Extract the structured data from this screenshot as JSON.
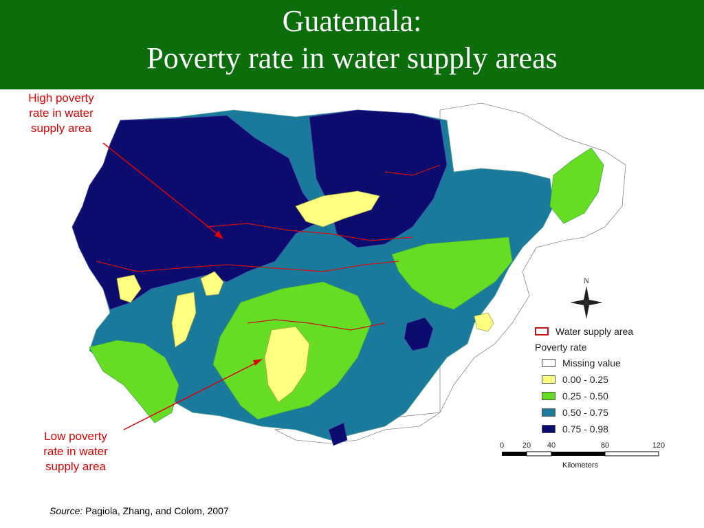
{
  "header": {
    "title_line1": "Guatemala:",
    "title_line2": "Poverty rate in water supply areas",
    "bg_color": "#0b6e0b"
  },
  "callouts": {
    "high": [
      "High poverty",
      "rate in water",
      "supply area"
    ],
    "low": [
      "Low poverty",
      "rate in water",
      "supply area"
    ],
    "color": "#e00000"
  },
  "legend": {
    "water_supply_label": "Water supply area",
    "poverty_title": "Poverty rate",
    "classes": [
      {
        "label": "Missing value",
        "color": "#ffffff"
      },
      {
        "label": "0.00 - 0.25",
        "color": "#ffff80"
      },
      {
        "label": "0.25 - 0.50",
        "color": "#66dd22"
      },
      {
        "label": "0.50 - 0.75",
        "color": "#1a7a9c"
      },
      {
        "label": "0.75 - 0.98",
        "color": "#0c0c6e"
      }
    ]
  },
  "north_arrow": {
    "label": "N"
  },
  "scale": {
    "ticks": [
      "0",
      "20",
      "40",
      "80",
      "120"
    ],
    "unit": "Kilometers"
  },
  "source": {
    "prefix": "Source:",
    "text": "Pagiola, Zhang, and Colom, 2007"
  }
}
